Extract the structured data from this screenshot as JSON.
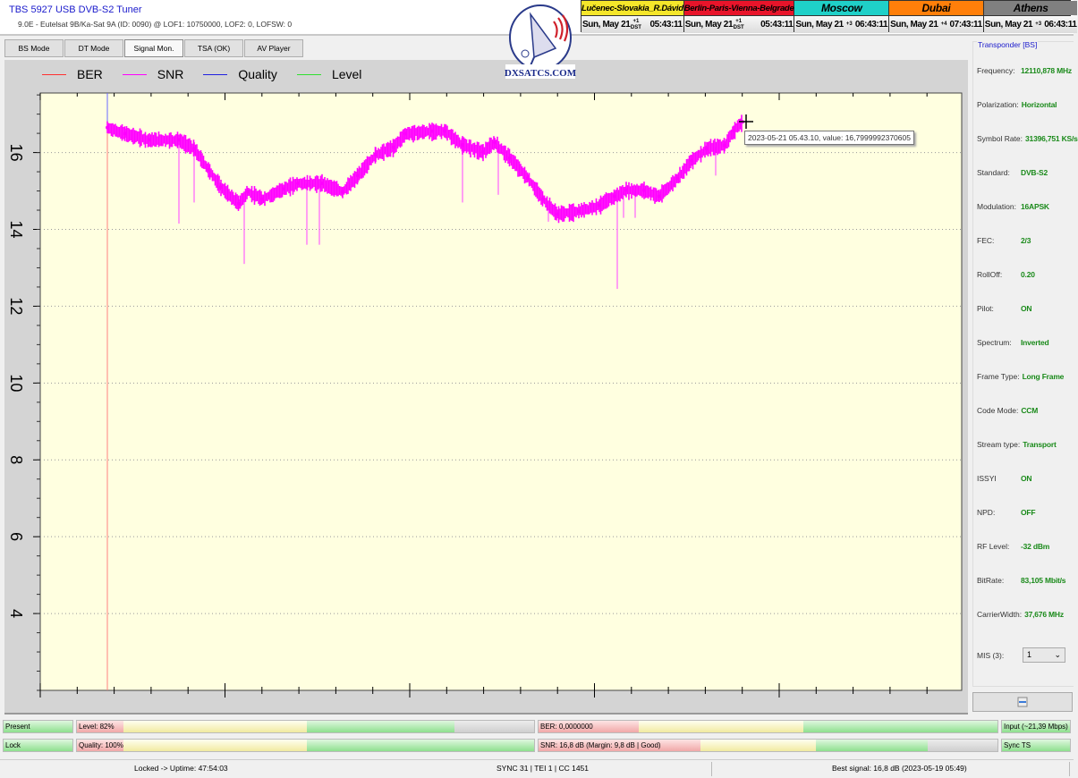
{
  "window": {
    "title": "TBS 5927 USB DVB-S2 Tuner",
    "subtitle": "9.0E - Eutelsat 9B/Ka-Sat 9A (ID: 0090) @ LOF1: 10750000, LOF2: 0, LOFSW: 0"
  },
  "logo": {
    "text": "DXSATCS.COM"
  },
  "clocks": [
    {
      "city": "Lučenec-Slovakia_R.Dávid",
      "bg": "#f5e62a",
      "fg": "#000000",
      "date": "Sun, May 21",
      "offset": "+1",
      "dst": "DST",
      "time": "05:43:11"
    },
    {
      "city": "Berlin-Paris-Vienna-Belgrade",
      "bg": "#e8142a",
      "fg": "#000000",
      "date": "Sun, May 21",
      "offset": "+1",
      "dst": "DST",
      "time": "05:43:11"
    },
    {
      "city": "Moscow",
      "bg": "#1fd0c8",
      "fg": "#000000",
      "date": "Sun, May 21",
      "offset": "+3",
      "dst": "",
      "time": "06:43:11"
    },
    {
      "city": "Dubai",
      "bg": "#ff7f0a",
      "fg": "#000000",
      "date": "Sun, May 21",
      "offset": "+4",
      "dst": "",
      "time": "07:43:11"
    },
    {
      "city": "Athens",
      "bg": "#808080",
      "fg": "#000000",
      "date": "Sun, May 21",
      "offset": "+3",
      "dst": "",
      "time": "06:43:11"
    }
  ],
  "tabs": [
    {
      "label": "BS Mode"
    },
    {
      "label": "DT Mode"
    },
    {
      "label": "Signal Mon.",
      "active": true
    },
    {
      "label": "TSA (OK)"
    },
    {
      "label": "AV Player"
    }
  ],
  "chart_data": {
    "type": "line",
    "legend": [
      {
        "name": "BER",
        "color": "#ff3030"
      },
      {
        "name": "SNR",
        "color": "#ff00ff"
      },
      {
        "name": "Quality",
        "color": "#2020e0"
      },
      {
        "name": "Level",
        "color": "#30e030"
      }
    ],
    "legend_position": "top-left",
    "ylim": [
      2,
      17.55
    ],
    "yticks": [
      "4",
      "6",
      "8",
      "10",
      "12",
      "14",
      "16"
    ],
    "grid": true,
    "xlabel": "",
    "ylabel": "",
    "snr_series": {
      "name": "SNR",
      "color": "#ff00ff",
      "x": [
        0,
        20,
        47,
        80,
        97,
        113,
        127,
        147,
        157,
        173,
        197,
        213,
        240,
        263,
        280,
        300,
        320,
        333,
        363,
        377,
        397,
        420,
        433,
        450,
        470,
        487,
        503,
        527,
        550,
        567,
        580,
        600,
        617,
        637,
        653,
        670,
        690,
        700,
        710
      ],
      "y": [
        16.65,
        16.49,
        16.33,
        16.33,
        16.1,
        15.56,
        15.1,
        14.67,
        14.98,
        14.79,
        15.05,
        15.2,
        15.2,
        14.98,
        15.4,
        15.95,
        16.14,
        16.49,
        16.56,
        16.56,
        16.2,
        16.02,
        16.26,
        15.86,
        15.33,
        14.79,
        14.4,
        14.47,
        14.63,
        14.86,
        15.02,
        15.02,
        14.86,
        15.33,
        15.79,
        16.1,
        16.19,
        16.56,
        16.8
      ]
    },
    "snr_dips": [
      {
        "x": 80,
        "y": 14.15
      },
      {
        "x": 97,
        "y": 14.7
      },
      {
        "x": 153,
        "y": 13.1
      },
      {
        "x": 223,
        "y": 13.6
      },
      {
        "x": 237,
        "y": 13.6
      },
      {
        "x": 397,
        "y": 14.7
      },
      {
        "x": 437,
        "y": 14.9
      },
      {
        "x": 493,
        "y": 14.2
      },
      {
        "x": 570,
        "y": 12.45
      },
      {
        "x": 577,
        "y": 14.3
      },
      {
        "x": 590,
        "y": 14.3
      },
      {
        "x": 680,
        "y": 15.4
      }
    ],
    "tooltip": "2023-05-21 05.43.10, value: 16,7999992370605"
  },
  "transponder": {
    "title": "Transponder [BS]",
    "fields": [
      {
        "k": "Frequency:",
        "v": "12110,878 MHz"
      },
      {
        "k": "Polarization:",
        "v": "Horizontal"
      },
      {
        "k": "Symbol Rate:",
        "v": "31396,751 KS/s"
      },
      {
        "k": "Standard:",
        "v": "DVB-S2"
      },
      {
        "k": "Modulation:",
        "v": "16APSK"
      },
      {
        "k": "FEC:",
        "v": "2/3"
      },
      {
        "k": "RollOff:",
        "v": "0.20"
      },
      {
        "k": "Pilot:",
        "v": "ON"
      },
      {
        "k": "Spectrum:",
        "v": "Inverted"
      },
      {
        "k": "Frame Type:",
        "v": "Long Frame"
      },
      {
        "k": "Code Mode:",
        "v": "CCM"
      },
      {
        "k": "Stream type:",
        "v": "Transport"
      },
      {
        "k": "ISSYI",
        "v": "ON"
      },
      {
        "k": "NPD:",
        "v": "OFF"
      },
      {
        "k": "RF Level:",
        "v": "-32 dBm"
      },
      {
        "k": "BitRate:",
        "v": "83,105 Mbit/s"
      },
      {
        "k": "CarrierWidth:",
        "v": "37,676 MHz"
      }
    ],
    "mis_label": "MIS (3):",
    "mis_value": "1"
  },
  "indicators": {
    "present": "Present",
    "lock": "Lock",
    "level": "Level: 82%",
    "level_pct": 82,
    "quality": "Quality: 100%",
    "quality_pct": 100,
    "ber": "BER: 0,0000000",
    "snr": "SNR: 16,8 dB (Margin: 9,8 dB | Good)",
    "input": "Input (~21,39 Mbps)",
    "sync": "Sync TS"
  },
  "status": {
    "uptime": "Locked -> Uptime: 47:54:03",
    "sync": "SYNC 31 | TEI 1 | CC 1451",
    "best": "Best signal: 16,8 dB (2023-05-19 05:49)"
  }
}
